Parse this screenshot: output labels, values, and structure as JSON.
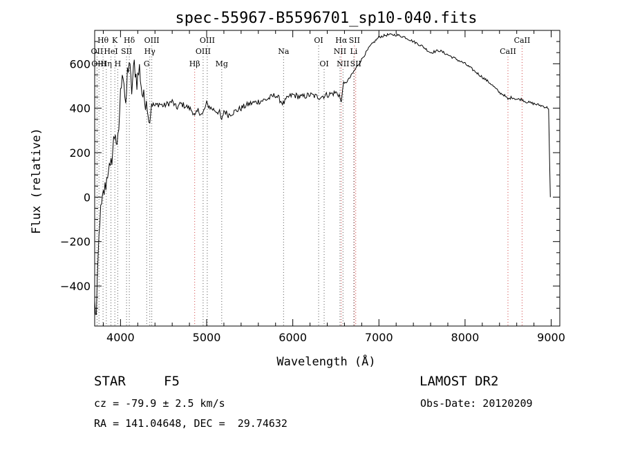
{
  "chart_data": {
    "type": "line",
    "title": "spec-55967-B5596701_sp10-040.fits",
    "xlabel": "Wavelength (Å)",
    "ylabel": "Flux (relative)",
    "xlim": [
      3700,
      9100
    ],
    "ylim": [
      -580,
      750
    ],
    "xticks": [
      4000,
      5000,
      6000,
      7000,
      8000,
      9000
    ],
    "yticks": [
      -400,
      -200,
      0,
      200,
      400,
      600
    ],
    "grid": false,
    "series": [
      {
        "values_description_free": true,
        "x": [
          3700,
          3720,
          3740,
          3760,
          3780,
          3800,
          3820,
          3840,
          3860,
          3880,
          3900,
          3920,
          3940,
          3960,
          3980,
          4000,
          4020,
          4040,
          4060,
          4080,
          4100,
          4130,
          4160,
          4190,
          4220,
          4250,
          4280,
          4300,
          4320,
          4340,
          4360,
          4400,
          4450,
          4500,
          4550,
          4600,
          4650,
          4700,
          4750,
          4800,
          4850,
          4861,
          4900,
          4950,
          5000,
          5050,
          5100,
          5150,
          5175,
          5200,
          5250,
          5300,
          5400,
          5500,
          5600,
          5700,
          5800,
          5890,
          5950,
          6000,
          6100,
          6200,
          6300,
          6400,
          6500,
          6540,
          6563,
          6580,
          6650,
          6700,
          6800,
          6900,
          7000,
          7100,
          7200,
          7300,
          7400,
          7500,
          7600,
          7700,
          7800,
          7900,
          8000,
          8100,
          8200,
          8300,
          8400,
          8450,
          8498,
          8542,
          8600,
          8662,
          8700,
          8800,
          8900,
          8970,
          8990
        ],
        "y": [
          -480,
          -540,
          -280,
          -90,
          -50,
          10,
          40,
          80,
          140,
          110,
          180,
          250,
          300,
          200,
          310,
          460,
          580,
          520,
          380,
          560,
          610,
          480,
          600,
          520,
          580,
          470,
          430,
          440,
          360,
          340,
          420,
          410,
          420,
          410,
          420,
          430,
          400,
          420,
          410,
          400,
          380,
          360,
          390,
          370,
          420,
          400,
          390,
          380,
          340,
          390,
          370,
          380,
          400,
          420,
          430,
          440,
          460,
          420,
          450,
          460,
          450,
          460,
          450,
          460,
          470,
          460,
          420,
          500,
          530,
          560,
          620,
          680,
          720,
          730,
          730,
          720,
          700,
          680,
          650,
          660,
          640,
          620,
          600,
          570,
          540,
          510,
          470,
          460,
          440,
          450,
          440,
          440,
          430,
          420,
          410,
          400,
          0
        ]
      }
    ],
    "line_markers": [
      {
        "label": "Hθ",
        "wl": 3797,
        "row": 1,
        "color": "black"
      },
      {
        "label": "OII",
        "wl": 3727,
        "row": 2,
        "color": "black"
      },
      {
        "label": "OIII",
        "wl": 3750,
        "row": 3,
        "color": "black"
      },
      {
        "label": "K",
        "wl": 3934,
        "row": 1,
        "color": "black"
      },
      {
        "label": "HeI",
        "wl": 3889,
        "row": 2,
        "color": "black"
      },
      {
        "label": "SII",
        "wl": 4070,
        "row": 2,
        "color": "black"
      },
      {
        "label": "Hη",
        "wl": 3835,
        "row": 3,
        "color": "black"
      },
      {
        "label": "H",
        "wl": 3968,
        "row": 3,
        "color": "black"
      },
      {
        "label": "Hδ",
        "wl": 4102,
        "row": 1,
        "color": "black"
      },
      {
        "label": "OIII",
        "wl": 4363,
        "row": 1,
        "color": "black"
      },
      {
        "label": "Hγ",
        "wl": 4340,
        "row": 2,
        "color": "black"
      },
      {
        "label": "G",
        "wl": 4304,
        "row": 3,
        "color": "black"
      },
      {
        "label": "OIII",
        "wl": 5007,
        "row": 1,
        "color": "black"
      },
      {
        "label": "OIII",
        "wl": 4959,
        "row": 2,
        "color": "black"
      },
      {
        "label": "Hβ",
        "wl": 4861,
        "row": 3,
        "color": "red"
      },
      {
        "label": "Mg",
        "wl": 5175,
        "row": 3,
        "color": "black"
      },
      {
        "label": "Na",
        "wl": 5893,
        "row": 2,
        "color": "black"
      },
      {
        "label": "OI",
        "wl": 6300,
        "row": 1,
        "color": "black"
      },
      {
        "label": "OI",
        "wl": 6364,
        "row": 3,
        "color": "black"
      },
      {
        "label": "Hα",
        "wl": 6563,
        "row": 1,
        "color": "red"
      },
      {
        "label": "SII",
        "wl": 6716,
        "row": 1,
        "color": "red"
      },
      {
        "label": "NII",
        "wl": 6548,
        "row": 2,
        "color": "black"
      },
      {
        "label": "Li",
        "wl": 6708,
        "row": 2,
        "color": "black"
      },
      {
        "label": "NII",
        "wl": 6583,
        "row": 3,
        "color": "black"
      },
      {
        "label": "SII",
        "wl": 6731,
        "row": 3,
        "color": "red"
      },
      {
        "label": "CaII",
        "wl": 8662,
        "row": 1,
        "color": "red"
      },
      {
        "label": "CaII",
        "wl": 8498,
        "row": 2,
        "color": "red"
      }
    ]
  },
  "info": {
    "object_class": "STAR",
    "subclass": "F5",
    "survey": "LAMOST DR2",
    "redshift": "cz = -79.9 ± 2.5 km/s",
    "obs_date": "Obs-Date: 20120209",
    "coords": "RA = 141.04648, DEC =  29.74632"
  }
}
